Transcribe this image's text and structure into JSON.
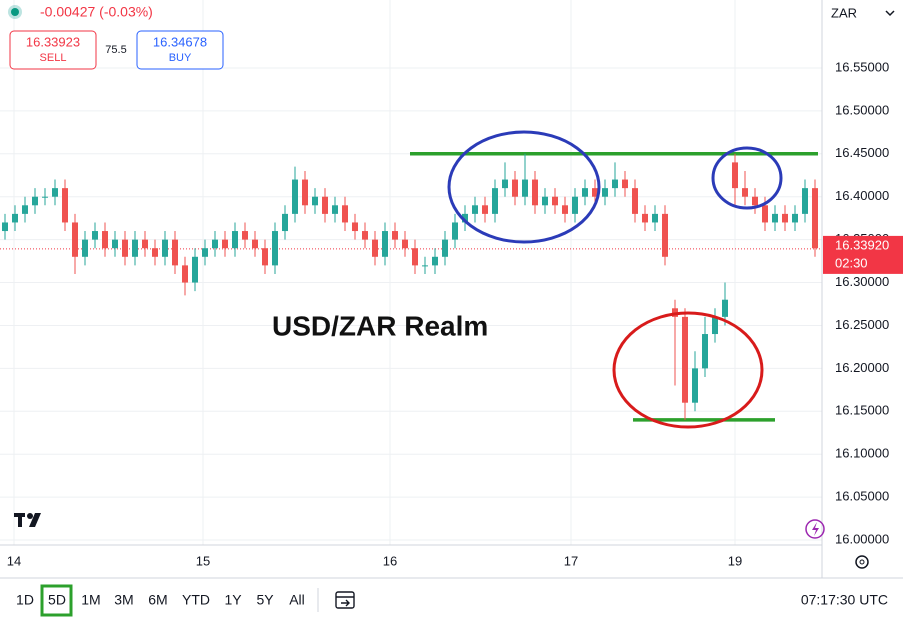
{
  "chart_data": {
    "type": "candlestick",
    "title": "USD/ZAR Realm",
    "currency": "ZAR",
    "change": "-0.00427 (-0.03%)",
    "xlim": [
      0,
      82
    ],
    "ylim": [
      15.9942,
      16.6292
    ],
    "xticks": [
      {
        "value": 1.4,
        "label": "14"
      },
      {
        "value": 20.3,
        "label": "15"
      },
      {
        "value": 39,
        "label": "16"
      },
      {
        "value": 57.1,
        "label": "17"
      },
      {
        "value": 73.5,
        "label": "19"
      }
    ],
    "yticks": [
      {
        "value": 16.0,
        "label": "16.00000"
      },
      {
        "value": 16.05,
        "label": "16.05000"
      },
      {
        "value": 16.1,
        "label": "16.10000"
      },
      {
        "value": 16.15,
        "label": "16.15000"
      },
      {
        "value": 16.2,
        "label": "16.20000"
      },
      {
        "value": 16.25,
        "label": "16.25000"
      },
      {
        "value": 16.3,
        "label": "16.30000"
      },
      {
        "value": 16.35,
        "label": "16.35000"
      },
      {
        "value": 16.4,
        "label": "16.40000"
      },
      {
        "value": 16.45,
        "label": "16.45000"
      },
      {
        "value": 16.5,
        "label": "16.50000"
      },
      {
        "value": 16.55,
        "label": "16.55000"
      }
    ],
    "grid": true,
    "up_color": "#26a69a",
    "down_color": "#ef5350",
    "open": [
      16.36,
      16.37,
      16.38,
      16.39,
      16.4,
      16.4,
      16.41,
      16.37,
      16.33,
      16.35,
      16.36,
      16.34,
      16.35,
      16.33,
      16.35,
      16.34,
      16.33,
      16.35,
      16.32,
      16.3,
      16.33,
      16.34,
      16.35,
      16.34,
      16.36,
      16.35,
      16.34,
      16.32,
      16.36,
      16.38,
      16.42,
      16.39,
      16.4,
      16.38,
      16.39,
      16.37,
      16.36,
      16.35,
      16.33,
      16.36,
      16.35,
      16.34,
      16.32,
      16.32,
      16.33,
      16.35,
      16.37,
      16.38,
      16.39,
      16.38,
      16.41,
      16.42,
      16.4,
      16.42,
      16.39,
      16.4,
      16.39,
      16.38,
      16.4,
      16.41,
      16.4,
      16.41,
      16.42,
      16.41,
      16.38,
      16.37,
      16.38,
      16.27,
      16.26,
      16.16,
      16.2,
      16.24,
      16.26,
      16.44,
      16.41,
      16.4,
      16.39,
      16.37,
      16.38,
      16.37,
      16.38,
      16.41
    ],
    "high": [
      16.38,
      16.39,
      16.4,
      16.41,
      16.41,
      16.42,
      16.42,
      16.38,
      16.36,
      16.37,
      16.37,
      16.36,
      16.36,
      16.36,
      16.36,
      16.35,
      16.36,
      16.36,
      16.33,
      16.34,
      16.35,
      16.36,
      16.36,
      16.37,
      16.37,
      16.36,
      16.35,
      16.37,
      16.39,
      16.435,
      16.43,
      16.41,
      16.41,
      16.4,
      16.4,
      16.38,
      16.37,
      16.36,
      16.37,
      16.37,
      16.36,
      16.35,
      16.33,
      16.34,
      16.36,
      16.38,
      16.39,
      16.4,
      16.4,
      16.42,
      16.44,
      16.43,
      16.45,
      16.43,
      16.41,
      16.41,
      16.4,
      16.41,
      16.42,
      16.42,
      16.42,
      16.44,
      16.43,
      16.42,
      16.39,
      16.39,
      16.39,
      16.28,
      16.27,
      16.22,
      16.26,
      16.27,
      16.3,
      16.45,
      16.43,
      16.41,
      16.4,
      16.39,
      16.39,
      16.39,
      16.42,
      16.42
    ],
    "low": [
      16.35,
      16.36,
      16.37,
      16.38,
      16.39,
      16.39,
      16.36,
      16.31,
      16.32,
      16.34,
      16.33,
      16.33,
      16.32,
      16.32,
      16.33,
      16.32,
      16.32,
      16.31,
      16.285,
      16.29,
      16.32,
      16.33,
      16.33,
      16.33,
      16.34,
      16.33,
      16.31,
      16.31,
      16.35,
      16.37,
      16.38,
      16.38,
      16.37,
      16.37,
      16.36,
      16.35,
      16.34,
      16.32,
      16.32,
      16.34,
      16.33,
      16.31,
      16.31,
      16.31,
      16.32,
      16.34,
      16.36,
      16.37,
      16.37,
      16.37,
      16.4,
      16.39,
      16.39,
      16.38,
      16.38,
      16.38,
      16.37,
      16.37,
      16.39,
      16.39,
      16.39,
      16.4,
      16.4,
      16.37,
      16.36,
      16.36,
      16.32,
      16.18,
      16.14,
      16.15,
      16.19,
      16.23,
      16.25,
      16.39,
      16.39,
      16.38,
      16.36,
      16.36,
      16.36,
      16.36,
      16.37,
      16.33
    ],
    "close": [
      16.37,
      16.38,
      16.39,
      16.4,
      16.4,
      16.41,
      16.37,
      16.33,
      16.35,
      16.36,
      16.34,
      16.35,
      16.33,
      16.35,
      16.34,
      16.33,
      16.35,
      16.32,
      16.3,
      16.33,
      16.34,
      16.35,
      16.34,
      16.36,
      16.35,
      16.34,
      16.32,
      16.36,
      16.38,
      16.42,
      16.39,
      16.4,
      16.38,
      16.39,
      16.37,
      16.36,
      16.35,
      16.33,
      16.36,
      16.35,
      16.34,
      16.32,
      16.32,
      16.33,
      16.35,
      16.37,
      16.38,
      16.39,
      16.38,
      16.41,
      16.42,
      16.4,
      16.42,
      16.39,
      16.4,
      16.39,
      16.38,
      16.4,
      16.41,
      16.4,
      16.41,
      16.42,
      16.41,
      16.38,
      16.37,
      16.38,
      16.33,
      16.26,
      16.16,
      16.2,
      16.24,
      16.26,
      16.28,
      16.41,
      16.4,
      16.39,
      16.37,
      16.38,
      16.37,
      16.38,
      16.41,
      16.34
    ],
    "levels": [
      {
        "value": 16.45,
        "color": "#2ca02c"
      },
      {
        "value": 16.14,
        "color": "#2ca02c"
      }
    ],
    "last_price": {
      "value": 16.3392,
      "label": "16.33920"
    },
    "countdown": "02:30"
  },
  "ticket": {
    "sell_price": "16.33923",
    "sell_label": "SELL",
    "spread": "75.5",
    "buy_price": "16.34678",
    "buy_label": "BUY"
  },
  "toolbar": {
    "ranges": [
      "1D",
      "5D",
      "1M",
      "3M",
      "6M",
      "YTD",
      "1Y",
      "5Y",
      "All"
    ],
    "clock": "07:17:30 UTC"
  }
}
